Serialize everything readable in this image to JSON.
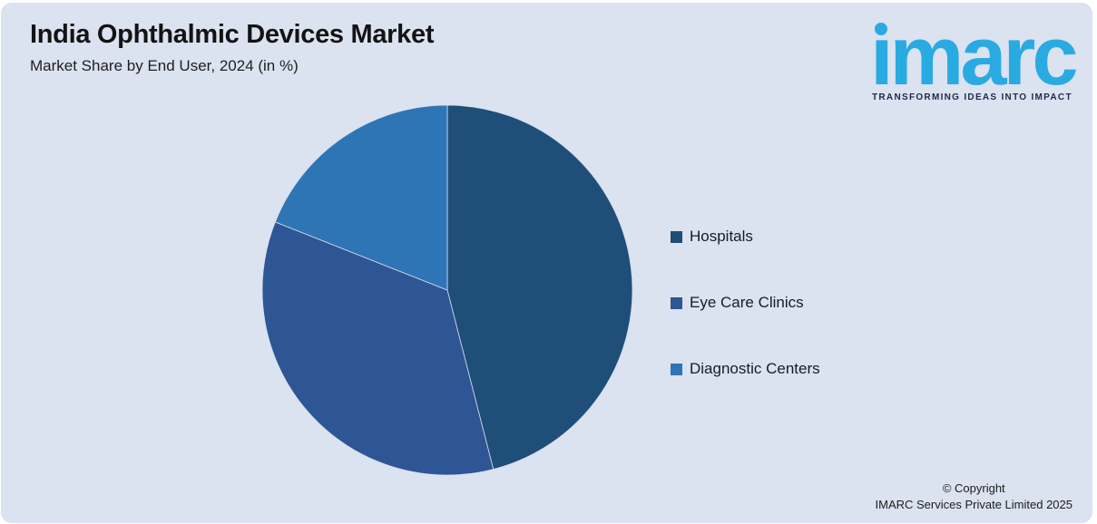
{
  "colors": {
    "page_background": "#FFFFFF",
    "panel_background": "#DBE2F0"
  },
  "header": {
    "title": "India Ophthalmic Devices Market",
    "subtitle": "Market Share by End User, 2024 (in %)"
  },
  "logo": {
    "text": "imarc",
    "tagline": "TRANSFORMING IDEAS INTO IMPACT",
    "brand_color": "#29ABE2",
    "tagline_color": "#1B2B4A"
  },
  "chart_data": {
    "type": "pie",
    "title": "India Ophthalmic Devices Market",
    "subtitle": "Market Share by End User, 2024 (in %)",
    "categories": [
      "Hospitals",
      "Eye Care Clinics",
      "Diagnostic Centers"
    ],
    "values": [
      46,
      35,
      19
    ],
    "unit": "%",
    "colors": [
      "#1F4E79",
      "#2E5694",
      "#2E75B6"
    ],
    "start_angle": 0,
    "direction": "clockwise",
    "data_labels": false,
    "legend_position": "right"
  },
  "footer": {
    "copyright_line1": "© Copyright",
    "copyright_line2": "IMARC Services Private Limited 2025"
  }
}
